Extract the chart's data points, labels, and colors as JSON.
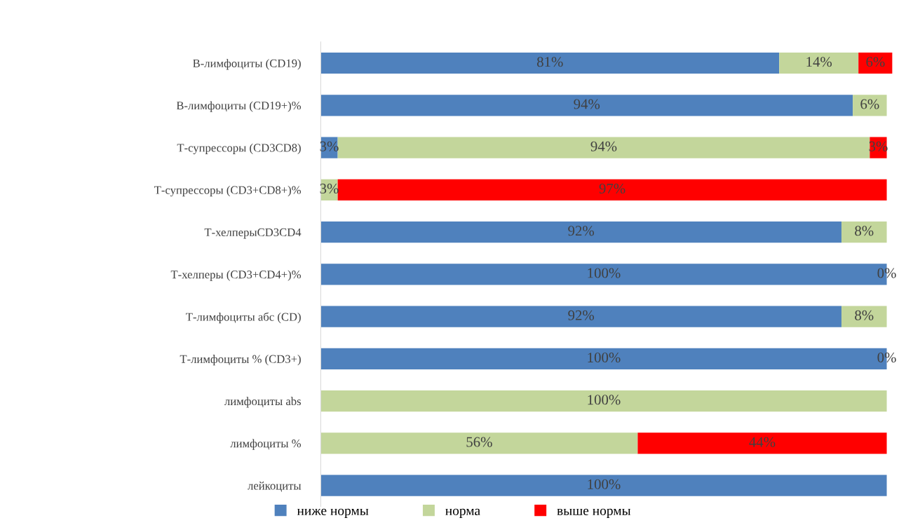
{
  "chart_data": {
    "type": "bar",
    "orientation": "horizontal",
    "stacked": true,
    "categories": [
      "В-лимфоциты (CD19)",
      "В-лимфоциты (CD19+)%",
      "Т-супрессоры (CD3CD8)",
      "Т-супрессоры (CD3+CD8+)%",
      "Т-хелперыCD3CD4",
      "Т-хелперы (CD3+CD4+)%",
      "Т-лимфоциты абс (CD)",
      "Т-лимфоциты % (CD3+)",
      "лимфоциты abs",
      "лимфоциты %",
      "лейкоциты"
    ],
    "series": [
      {
        "name": "ниже нормы",
        "color": "#4f81bd",
        "values": [
          81,
          94,
          3,
          null,
          92,
          100,
          92,
          100,
          null,
          null,
          100
        ],
        "value_labels": [
          "81%",
          "94%",
          "3%",
          null,
          "92%",
          "100%",
          "92%",
          "100%",
          null,
          null,
          "100%"
        ]
      },
      {
        "name": "норма",
        "color": "#c3d69b",
        "values": [
          14,
          6,
          94,
          3,
          8,
          0,
          8,
          0,
          100,
          56,
          null
        ],
        "value_labels": [
          "14%",
          "6%",
          "94%",
          "3%",
          "8%",
          "0%",
          "8%",
          "0%",
          "100%",
          "56%",
          null
        ]
      },
      {
        "name": "выше нормы",
        "color": "#ff0000",
        "values": [
          6,
          null,
          3,
          97,
          null,
          null,
          null,
          null,
          null,
          44,
          null
        ],
        "value_labels": [
          "6%",
          null,
          "3%",
          "97%",
          null,
          null,
          null,
          null,
          null,
          "44%",
          null
        ]
      }
    ],
    "xlim": [
      0,
      101
    ],
    "tick_labels": "y",
    "grid": false,
    "legend": "bottom"
  }
}
